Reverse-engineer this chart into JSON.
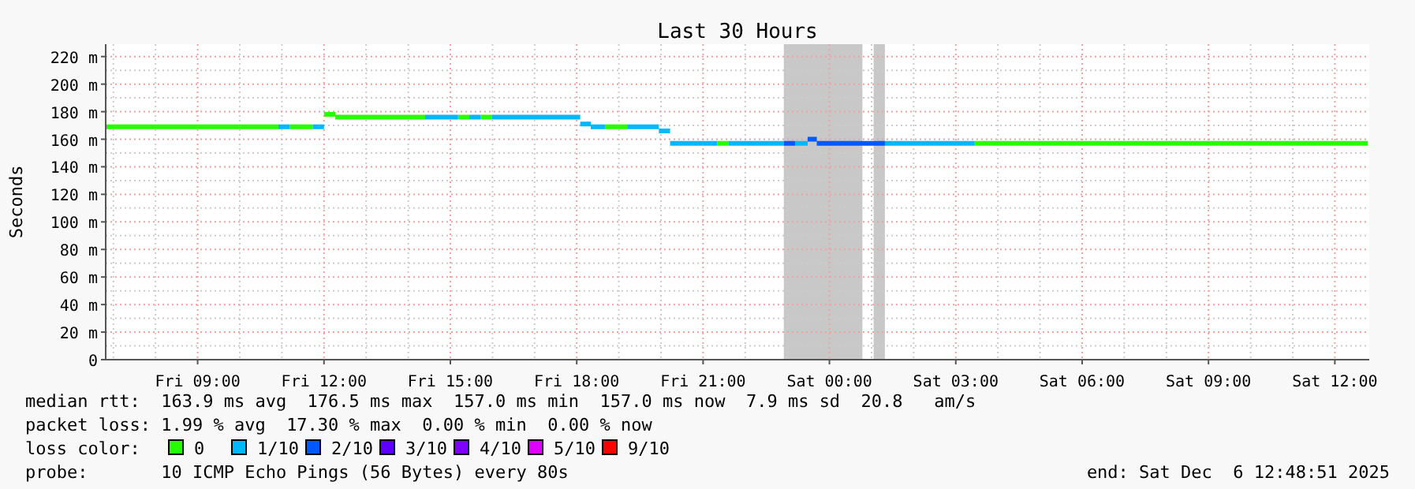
{
  "chart_data": {
    "type": "line",
    "title": "Last 30 Hours",
    "ylabel": "Seconds",
    "xlim": [
      "2025-12-05T06:49",
      "2025-12-06T12:49"
    ],
    "xticks": [
      {
        "value": "2025-12-05T09:00",
        "label": "Fri 09:00"
      },
      {
        "value": "2025-12-05T12:00",
        "label": "Fri 12:00"
      },
      {
        "value": "2025-12-05T15:00",
        "label": "Fri 15:00"
      },
      {
        "value": "2025-12-05T18:00",
        "label": "Fri 18:00"
      },
      {
        "value": "2025-12-05T21:00",
        "label": "Fri 21:00"
      },
      {
        "value": "2025-12-06T00:00",
        "label": "Sat 00:00"
      },
      {
        "value": "2025-12-06T03:00",
        "label": "Sat 03:00"
      },
      {
        "value": "2025-12-06T06:00",
        "label": "Sat 06:00"
      },
      {
        "value": "2025-12-06T09:00",
        "label": "Sat 09:00"
      },
      {
        "value": "2025-12-06T12:00",
        "label": "Sat 12:00"
      }
    ],
    "ylim": [
      0,
      229
    ],
    "yticks": [
      0,
      {
        "value": 20,
        "label": "20 m"
      },
      {
        "value": 40,
        "label": "40 m"
      },
      {
        "value": 60,
        "label": "60 m"
      },
      {
        "value": 80,
        "label": "80 m"
      },
      {
        "value": 100,
        "label": "100 m"
      },
      {
        "value": 120,
        "label": "120 m"
      },
      {
        "value": 140,
        "label": "140 m"
      },
      {
        "value": 160,
        "label": "160 m"
      },
      {
        "value": 180,
        "label": "180 m"
      },
      {
        "value": 200,
        "label": "200 m"
      },
      {
        "value": 220,
        "label": "220 m"
      }
    ],
    "grid": true,
    "legend": "bottom",
    "legend_title": "loss color:",
    "marker": "none",
    "line_style": "solid",
    "bands": [
      {
        "axis": "x",
        "from": "2025-12-05T22:55",
        "to": "2025-12-06T00:47",
        "color": "#c8c8c8"
      },
      {
        "axis": "x",
        "from": "2025-12-06T01:03",
        "to": "2025-12-06T01:19",
        "color": "#c8c8c8"
      }
    ],
    "series": [
      {
        "name": "0",
        "color": "#26ff00",
        "x": [
          "2025-12-05T06:49",
          "2025-12-05T10:55",
          null,
          "2025-12-05T11:11",
          "2025-12-05T11:44",
          null,
          "2025-12-05T12:00",
          "2025-12-05T12:16",
          null,
          "2025-12-05T12:16",
          "2025-12-05T14:24",
          null,
          "2025-12-05T15:11",
          "2025-12-05T15:27",
          null,
          "2025-12-05T15:43",
          "2025-12-05T15:59",
          null,
          "2025-12-05T18:41",
          "2025-12-05T19:12",
          null,
          "2025-12-05T21:20",
          "2025-12-05T21:36",
          null,
          "2025-12-06T03:27",
          "2025-12-06T12:47"
        ],
        "values": [
          169,
          169,
          null,
          169,
          169,
          null,
          178,
          178,
          null,
          176,
          176,
          null,
          176,
          176,
          null,
          176,
          176,
          null,
          169,
          169,
          null,
          157,
          157,
          null,
          157,
          157
        ]
      },
      {
        "name": "1/10",
        "color": "#00b8ff",
        "x": [
          "2025-12-05T10:55",
          "2025-12-05T11:11",
          null,
          "2025-12-05T11:44",
          "2025-12-05T12:00",
          null,
          "2025-12-05T14:24",
          "2025-12-05T15:11",
          null,
          "2025-12-05T15:27",
          "2025-12-05T15:43",
          null,
          "2025-12-05T15:59",
          "2025-12-05T18:05",
          null,
          "2025-12-05T18:05",
          "2025-12-05T18:20",
          null,
          "2025-12-05T18:20",
          "2025-12-05T18:41",
          null,
          "2025-12-05T19:12",
          "2025-12-05T19:57",
          null,
          "2025-12-05T19:57",
          "2025-12-05T20:13",
          null,
          "2025-12-05T20:13",
          "2025-12-05T21:20",
          null,
          "2025-12-05T21:36",
          "2025-12-05T22:55",
          null,
          "2025-12-05T23:11",
          "2025-12-05T23:29",
          null,
          "2025-12-06T01:19",
          "2025-12-06T03:27"
        ],
        "values": [
          169,
          169,
          null,
          169,
          169,
          null,
          176,
          176,
          null,
          176,
          176,
          null,
          176,
          176,
          null,
          171,
          171,
          null,
          169,
          169,
          null,
          169,
          169,
          null,
          166,
          166,
          null,
          157,
          157,
          null,
          157,
          157,
          null,
          157,
          157,
          null,
          157,
          157
        ]
      },
      {
        "name": "2/10",
        "color": "#0059ff",
        "x": [
          "2025-12-05T22:55",
          "2025-12-05T23:11",
          null,
          "2025-12-05T23:29",
          "2025-12-05T23:42",
          null,
          "2025-12-05T23:42",
          "2025-12-06T01:19"
        ],
        "values": [
          157,
          157,
          null,
          160,
          160,
          null,
          157,
          157
        ]
      },
      {
        "name": "3/10",
        "color": "#5e00ff"
      },
      {
        "name": "4/10",
        "color": "#7e00ff"
      },
      {
        "name": "5/10",
        "color": "#dd00ff"
      },
      {
        "name": "9/10",
        "color": "#ff0000"
      }
    ],
    "annotations": [
      "median rtt:  163.9 ms avg  176.5 ms max  157.0 ms min  157.0 ms now  7.9 ms sd  20.8   am/s",
      "packet loss: 1.99 % avg  17.30 % max  0.00 % min  0.00 % now",
      "probe:       10 ICMP Echo Pings (56 Bytes) every 80s",
      "end: Sat Dec  6 12:48:51 2025"
    ]
  }
}
